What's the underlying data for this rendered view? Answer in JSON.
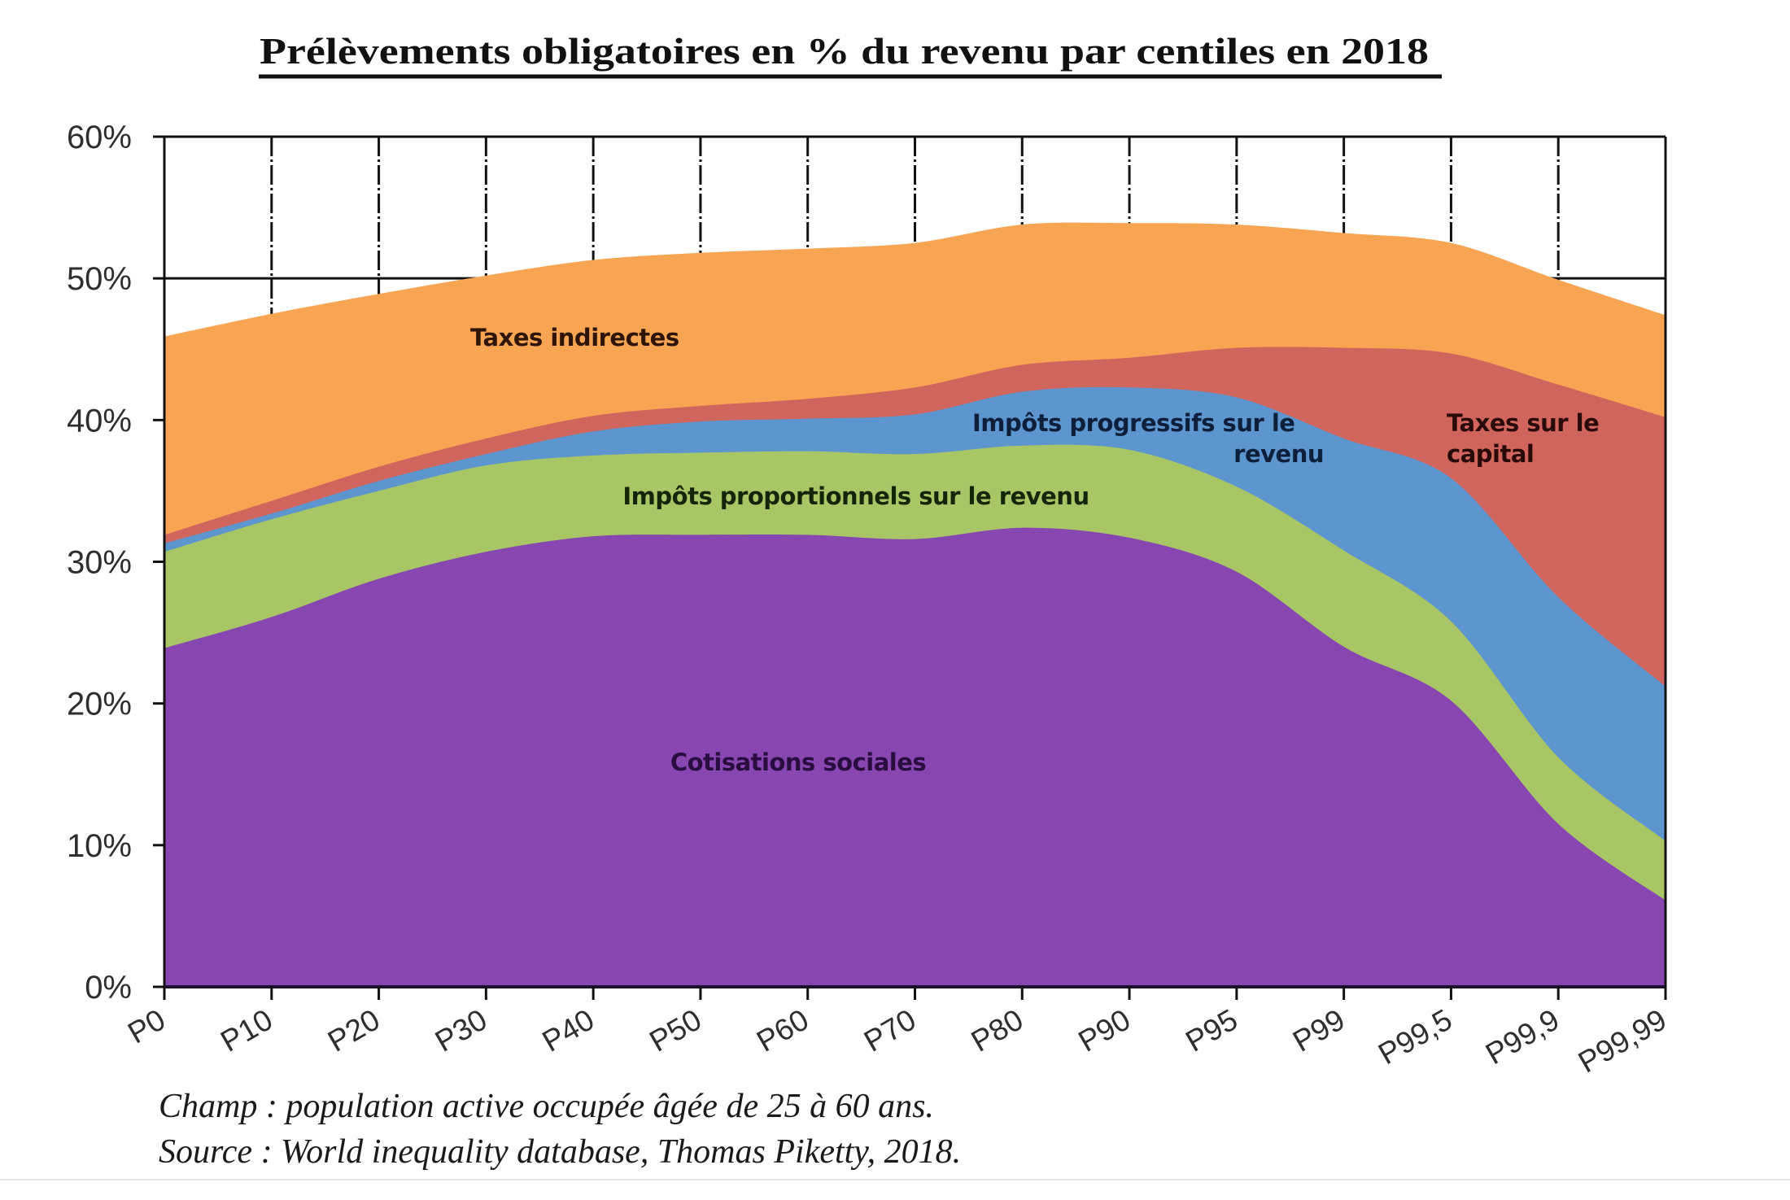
{
  "chart_data": {
    "type": "area",
    "stacked": true,
    "title": "Prélèvements obligatoires en % du revenu par centiles en 2018",
    "xlabel": "",
    "ylabel": "",
    "categories": [
      "P0",
      "P10",
      "P20",
      "P30",
      "P40",
      "P50",
      "P60",
      "P70",
      "P80",
      "P90",
      "P95",
      "P99",
      "P99,5",
      "P99,9",
      "P99,99"
    ],
    "ylim": [
      0,
      60
    ],
    "yticks": [
      0,
      10,
      20,
      30,
      40,
      50,
      60
    ],
    "ytick_labels": [
      "0%",
      "10%",
      "20%",
      "30%",
      "40%",
      "50%",
      "60%"
    ],
    "grid": "vertical dash-dot at each category; horizontal at 50% and 60%",
    "legend": "inline labels inside areas",
    "series": [
      {
        "name": "Cotisations sociales",
        "label_lines": [
          "Cotisations sociales"
        ],
        "color": "#8746B0",
        "label_color": "#2a0d40",
        "values": [
          23.9,
          26.1,
          28.8,
          30.7,
          31.8,
          31.9,
          31.9,
          31.6,
          32.4,
          31.7,
          29.3,
          24.0,
          20.2,
          11.5,
          6.1
        ]
      },
      {
        "name": "Impôts proportionnels sur le revenu",
        "label_lines": [
          "Impôts proportionnels sur le revenu"
        ],
        "color": "#A9C666",
        "label_color": "#14260a",
        "values": [
          6.8,
          6.9,
          6.2,
          6.1,
          5.7,
          5.8,
          5.9,
          6.0,
          5.8,
          6.2,
          6.0,
          6.8,
          5.6,
          4.7,
          4.2
        ]
      },
      {
        "name": "Impôts progressifs sur le revenu",
        "label_lines": [
          "Impôts progressifs sur le",
          "revenu"
        ],
        "color": "#5D95CE",
        "label_color": "#0d1f3a",
        "values": [
          0.6,
          0.4,
          0.7,
          0.8,
          1.7,
          2.2,
          2.3,
          2.8,
          3.8,
          4.4,
          6.3,
          7.9,
          10.1,
          11.3,
          10.9
        ]
      },
      {
        "name": "Taxes sur le capital",
        "label_lines": [
          "Taxes sur le",
          "capital"
        ],
        "color": "#D0655E",
        "label_color": "#2a0a08",
        "values": [
          0.6,
          0.9,
          1.0,
          1.1,
          1.1,
          1.1,
          1.4,
          1.9,
          1.9,
          2.1,
          3.5,
          6.4,
          8.8,
          15.0,
          19.0
        ]
      },
      {
        "name": "Taxes indirectes",
        "label_lines": [
          "Taxes indirectes"
        ],
        "color": "#F8A553",
        "label_color": "#2e1505",
        "values": [
          14.0,
          13.2,
          12.2,
          11.5,
          11.0,
          10.8,
          10.6,
          10.2,
          9.9,
          9.5,
          8.7,
          8.1,
          7.8,
          7.4,
          7.2
        ]
      }
    ],
    "annotations": [
      "Champ : population active occupée âgée de 25 à 60 ans.",
      "Source : World inequality database, Thomas Piketty, 2018."
    ]
  },
  "footer": {
    "champ": "Champ : population active occupée âgée de 25 à 60 ans.",
    "source": "Source : World inequality database, Thomas Piketty, 2018."
  }
}
